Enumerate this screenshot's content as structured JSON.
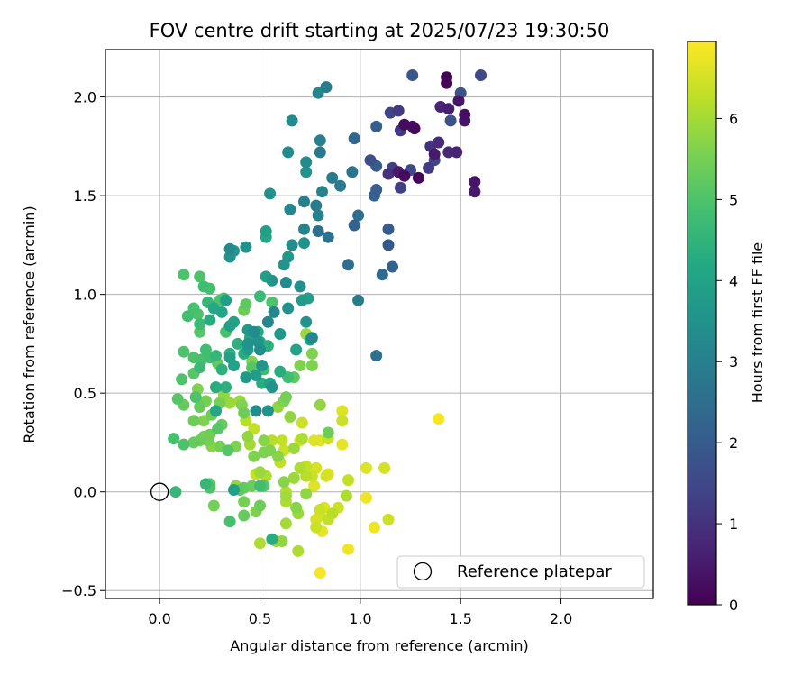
{
  "chart_data": {
    "type": "scatter",
    "title": "FOV centre drift starting at 2025/07/23 19:30:50",
    "xlabel": "Angular distance from reference (arcmin)",
    "ylabel": "Rotation from reference (arcmin)",
    "xlim": [
      -0.27,
      2.46
    ],
    "ylim": [
      -0.54,
      2.24
    ],
    "x_ticks": [
      "0.0",
      "0.5",
      "1.0",
      "1.5",
      "2.0"
    ],
    "y_ticks": [
      "−0.5",
      "0.0",
      "0.5",
      "1.0",
      "1.5",
      "2.0"
    ],
    "grid": true,
    "colorbar": {
      "label": "Hours from first FF file",
      "min": 0,
      "max": 6.95,
      "ticks": [
        "0",
        "1",
        "2",
        "3",
        "4",
        "5",
        "6"
      ],
      "colormap": "viridis"
    },
    "legend": {
      "position": "lower-right",
      "entries": [
        {
          "label": "Reference platepar",
          "marker": "open-circle",
          "x": 0.0,
          "y": 0.0
        }
      ]
    },
    "points": [
      [
        1.43,
        2.1,
        0.05
      ],
      [
        1.43,
        2.07,
        0.1
      ],
      [
        1.49,
        1.98,
        0.4
      ],
      [
        1.52,
        1.91,
        0.3
      ],
      [
        1.52,
        1.88,
        0.4
      ],
      [
        1.44,
        1.94,
        0.6
      ],
      [
        1.4,
        1.95,
        0.7
      ],
      [
        1.26,
        1.85,
        0.3
      ],
      [
        1.22,
        1.86,
        0.2
      ],
      [
        1.27,
        1.84,
        0.2
      ],
      [
        1.37,
        1.71,
        0.5
      ],
      [
        1.44,
        1.72,
        0.8
      ],
      [
        1.57,
        1.57,
        0.4
      ],
      [
        1.57,
        1.52,
        0.5
      ],
      [
        1.48,
        1.72,
        0.7
      ],
      [
        1.39,
        1.77,
        0.9
      ],
      [
        1.35,
        1.75,
        1.0
      ],
      [
        1.19,
        1.93,
        1.2
      ],
      [
        1.15,
        1.92,
        1.4
      ],
      [
        1.2,
        1.83,
        1.1
      ],
      [
        1.22,
        1.6,
        0.2
      ],
      [
        1.29,
        1.59,
        0.1
      ],
      [
        1.19,
        1.62,
        0.5
      ],
      [
        1.14,
        1.61,
        1.0
      ],
      [
        1.16,
        1.64,
        1.3
      ],
      [
        1.2,
        1.54,
        1.3
      ],
      [
        1.34,
        1.64,
        1.2
      ],
      [
        1.37,
        1.68,
        1.4
      ],
      [
        1.25,
        1.63,
        1.5
      ],
      [
        1.26,
        2.11,
        1.9
      ],
      [
        1.5,
        2.02,
        1.8
      ],
      [
        1.6,
        2.11,
        1.5
      ],
      [
        1.45,
        1.88,
        1.7
      ],
      [
        1.08,
        1.85,
        2.1
      ],
      [
        1.05,
        1.68,
        1.7
      ],
      [
        1.08,
        1.65,
        2.0
      ],
      [
        1.08,
        1.53,
        2.1
      ],
      [
        1.07,
        1.5,
        2.2
      ],
      [
        0.97,
        1.79,
        2.3
      ],
      [
        0.96,
        1.62,
        2.6
      ],
      [
        0.99,
        1.4,
        2.5
      ],
      [
        0.97,
        1.35,
        2.2
      ],
      [
        1.14,
        1.33,
        2.0
      ],
      [
        1.14,
        1.25,
        1.9
      ],
      [
        1.16,
        1.14,
        2.2
      ],
      [
        1.11,
        1.1,
        2.4
      ],
      [
        1.08,
        0.69,
        2.5
      ],
      [
        0.99,
        0.97,
        2.9
      ],
      [
        0.94,
        1.15,
        2.5
      ],
      [
        0.9,
        1.55,
        2.8
      ],
      [
        0.86,
        1.59,
        2.9
      ],
      [
        0.84,
        1.29,
        2.6
      ],
      [
        0.79,
        1.32,
        2.5
      ],
      [
        0.78,
        1.45,
        2.9
      ],
      [
        0.79,
        1.4,
        3.0
      ],
      [
        0.81,
        1.52,
        3.1
      ],
      [
        0.8,
        1.72,
        2.8
      ],
      [
        0.8,
        1.78,
        3.0
      ],
      [
        0.79,
        2.02,
        3.2
      ],
      [
        0.83,
        2.05,
        2.9
      ],
      [
        0.66,
        1.88,
        3.3
      ],
      [
        0.73,
        1.67,
        3.3
      ],
      [
        0.73,
        1.62,
        3.5
      ],
      [
        0.64,
        1.72,
        3.3
      ],
      [
        0.72,
        1.47,
        3.0
      ],
      [
        0.65,
        1.43,
        3.2
      ],
      [
        0.72,
        1.33,
        3.1
      ],
      [
        0.66,
        1.25,
        3.4
      ],
      [
        0.72,
        1.26,
        3.5
      ],
      [
        0.64,
        1.19,
        3.7
      ],
      [
        0.62,
        1.15,
        3.6
      ],
      [
        0.55,
        1.51,
        3.5
      ],
      [
        0.53,
        1.32,
        3.9
      ],
      [
        0.53,
        1.29,
        4.1
      ],
      [
        0.53,
        1.09,
        3.9
      ],
      [
        0.56,
        1.07,
        3.6
      ],
      [
        0.63,
        1.06,
        3.3
      ],
      [
        0.7,
        1.04,
        3.5
      ],
      [
        0.71,
        0.97,
        3.8
      ],
      [
        0.74,
        0.98,
        3.9
      ],
      [
        0.73,
        0.86,
        3.6
      ],
      [
        0.76,
        0.78,
        3.2
      ],
      [
        0.75,
        0.77,
        3.9
      ],
      [
        0.68,
        0.72,
        4.0
      ],
      [
        0.6,
        0.8,
        3.7
      ],
      [
        0.64,
        0.93,
        3.5
      ],
      [
        0.57,
        0.91,
        3.1
      ],
      [
        0.54,
        0.86,
        3.2
      ],
      [
        0.47,
        0.81,
        3.3
      ],
      [
        0.44,
        0.82,
        3.7
      ],
      [
        0.44,
        0.75,
        3.5
      ],
      [
        0.44,
        0.72,
        3.8
      ],
      [
        0.49,
        0.76,
        3.6
      ],
      [
        0.5,
        0.72,
        3.4
      ],
      [
        0.51,
        0.64,
        3.6
      ],
      [
        0.48,
        0.59,
        3.8
      ],
      [
        0.43,
        0.58,
        3.7
      ],
      [
        0.51,
        0.55,
        4.3
      ],
      [
        0.55,
        0.55,
        3.9
      ],
      [
        0.56,
        0.53,
        3.6
      ],
      [
        0.54,
        0.41,
        3.5
      ],
      [
        0.48,
        0.41,
        3.4
      ],
      [
        0.35,
        0.84,
        3.9
      ],
      [
        0.33,
        0.97,
        3.9
      ],
      [
        0.35,
        1.19,
        3.6
      ],
      [
        0.35,
        1.23,
        3.3
      ],
      [
        0.37,
        1.22,
        3.7
      ],
      [
        0.43,
        1.24,
        3.5
      ],
      [
        0.39,
        0.75,
        4.4
      ],
      [
        0.37,
        0.86,
        4.0
      ],
      [
        0.35,
        0.68,
        3.9
      ],
      [
        0.31,
        0.62,
        4.4
      ],
      [
        0.37,
        0.64,
        4.0
      ],
      [
        0.33,
        0.53,
        4.4
      ],
      [
        0.28,
        0.53,
        4.3
      ],
      [
        0.28,
        0.41,
        4.1
      ],
      [
        0.27,
        0.93,
        4.2
      ],
      [
        0.25,
        0.87,
        4.3
      ],
      [
        0.31,
        0.91,
        4.1
      ],
      [
        0.12,
        1.1,
        5.0
      ],
      [
        0.2,
        1.09,
        5.0
      ],
      [
        0.25,
        1.03,
        4.9
      ],
      [
        0.22,
        1.04,
        4.8
      ],
      [
        0.24,
        0.96,
        4.6
      ],
      [
        0.2,
        0.85,
        4.7
      ],
      [
        0.14,
        0.89,
        4.8
      ],
      [
        0.17,
        0.93,
        4.9
      ],
      [
        0.19,
        0.9,
        5.0
      ],
      [
        0.2,
        0.81,
        5.1
      ],
      [
        0.12,
        0.71,
        5.0
      ],
      [
        0.17,
        0.68,
        5.0
      ],
      [
        0.21,
        0.67,
        4.9
      ],
      [
        0.23,
        0.72,
        4.8
      ],
      [
        0.25,
        0.68,
        4.8
      ],
      [
        0.11,
        0.57,
        5.0
      ],
      [
        0.17,
        0.6,
        5.1
      ],
      [
        0.2,
        0.63,
        4.7
      ],
      [
        0.28,
        0.69,
        4.6
      ],
      [
        0.29,
        0.65,
        5.3
      ],
      [
        0.33,
        0.81,
        4.9
      ],
      [
        0.35,
        0.7,
        4.4
      ],
      [
        0.42,
        0.7,
        4.3
      ],
      [
        0.45,
        0.78,
        4.2
      ],
      [
        0.49,
        0.81,
        4.2
      ],
      [
        0.5,
        0.76,
        4.3
      ],
      [
        0.54,
        0.74,
        4.4
      ],
      [
        0.46,
        0.63,
        5.1
      ],
      [
        0.46,
        0.66,
        5.6
      ],
      [
        0.52,
        0.62,
        4.8
      ],
      [
        0.6,
        0.61,
        4.3
      ],
      [
        0.64,
        0.58,
        4.8
      ],
      [
        0.67,
        0.58,
        5.2
      ],
      [
        0.7,
        0.64,
        5.6
      ],
      [
        0.76,
        0.64,
        5.6
      ],
      [
        0.76,
        0.7,
        5.6
      ],
      [
        0.73,
        0.8,
        5.9
      ],
      [
        0.5,
        0.99,
        4.7
      ],
      [
        0.56,
        0.96,
        5.0
      ],
      [
        0.43,
        0.95,
        5.2
      ],
      [
        0.42,
        0.92,
        5.4
      ],
      [
        0.3,
        0.97,
        5.0
      ],
      [
        0.32,
        0.98,
        4.9
      ],
      [
        0.09,
        0.47,
        5.1
      ],
      [
        0.12,
        0.44,
        5.3
      ],
      [
        0.18,
        0.48,
        5.0
      ],
      [
        0.2,
        0.43,
        5.3
      ],
      [
        0.19,
        0.52,
        5.6
      ],
      [
        0.23,
        0.46,
        5.5
      ],
      [
        0.26,
        0.39,
        5.4
      ],
      [
        0.22,
        0.36,
        5.6
      ],
      [
        0.17,
        0.36,
        5.4
      ],
      [
        0.22,
        0.28,
        5.5
      ],
      [
        0.24,
        0.26,
        5.5
      ],
      [
        0.25,
        0.29,
        5.4
      ],
      [
        0.26,
        0.23,
        5.7
      ],
      [
        0.3,
        0.45,
        5.5
      ],
      [
        0.32,
        0.49,
        5.8
      ],
      [
        0.35,
        0.45,
        5.9
      ],
      [
        0.4,
        0.46,
        5.9
      ],
      [
        0.41,
        0.44,
        5.6
      ],
      [
        0.42,
        0.4,
        5.4
      ],
      [
        0.43,
        0.36,
        6.2
      ],
      [
        0.44,
        0.28,
        5.8
      ],
      [
        0.38,
        0.23,
        5.6
      ],
      [
        0.34,
        0.21,
        5.1
      ],
      [
        0.3,
        0.23,
        5.5
      ],
      [
        0.47,
        0.32,
        6.3
      ],
      [
        0.45,
        0.24,
        6.0
      ],
      [
        0.47,
        0.18,
        5.6
      ],
      [
        0.52,
        0.2,
        5.6
      ],
      [
        0.52,
        0.26,
        5.7
      ],
      [
        0.55,
        0.21,
        5.6
      ],
      [
        0.56,
        0.26,
        6.2
      ],
      [
        0.61,
        0.26,
        6.3
      ],
      [
        0.62,
        0.21,
        6.4
      ],
      [
        0.6,
        0.15,
        6.3
      ],
      [
        0.59,
        0.18,
        5.7
      ],
      [
        0.59,
        0.43,
        5.8
      ],
      [
        0.62,
        0.46,
        5.6
      ],
      [
        0.63,
        0.48,
        5.5
      ],
      [
        0.65,
        0.38,
        5.8
      ],
      [
        0.71,
        0.35,
        6.4
      ],
      [
        0.7,
        0.26,
        6.5
      ],
      [
        0.71,
        0.27,
        6.1
      ],
      [
        0.67,
        0.22,
        5.9
      ],
      [
        0.7,
        0.12,
        6.1
      ],
      [
        0.73,
        0.13,
        6.3
      ],
      [
        0.73,
        0.08,
        6.2
      ],
      [
        0.78,
        0.12,
        6.5
      ],
      [
        0.77,
        0.26,
        6.6
      ],
      [
        0.8,
        0.26,
        6.6
      ],
      [
        0.84,
        0.27,
        6.4
      ],
      [
        0.8,
        0.44,
        5.8
      ],
      [
        0.84,
        0.3,
        5.4
      ],
      [
        0.91,
        0.41,
        6.6
      ],
      [
        0.91,
        0.36,
        6.4
      ],
      [
        0.91,
        0.24,
        6.7
      ],
      [
        0.94,
        0.06,
        6.3
      ],
      [
        0.93,
        -0.02,
        6.1
      ],
      [
        0.89,
        -0.08,
        6.4
      ],
      [
        1.03,
        -0.03,
        6.8
      ],
      [
        1.03,
        0.12,
        6.6
      ],
      [
        1.12,
        0.12,
        6.5
      ],
      [
        1.14,
        -0.14,
        6.4
      ],
      [
        1.07,
        -0.18,
        6.8
      ],
      [
        0.94,
        -0.29,
        6.8
      ],
      [
        1.39,
        0.37,
        6.9
      ],
      [
        0.8,
        -0.41,
        6.9
      ],
      [
        0.81,
        -0.2,
        6.7
      ],
      [
        0.78,
        -0.18,
        6.4
      ],
      [
        0.78,
        -0.14,
        6.5
      ],
      [
        0.8,
        -0.12,
        6.5
      ],
      [
        0.8,
        -0.09,
        6.4
      ],
      [
        0.84,
        -0.14,
        6.3
      ],
      [
        0.86,
        -0.11,
        6.2
      ],
      [
        0.82,
        -0.08,
        6.6
      ],
      [
        0.83,
        0.08,
        6.5
      ],
      [
        0.84,
        0.09,
        6.6
      ],
      [
        0.76,
        0.08,
        6.4
      ],
      [
        0.77,
        0.03,
        6.6
      ],
      [
        0.73,
        -0.01,
        5.8
      ],
      [
        0.67,
        0.07,
        5.9
      ],
      [
        0.62,
        0.05,
        5.7
      ],
      [
        0.63,
        -0.02,
        6.0
      ],
      [
        0.63,
        -0.05,
        6.1
      ],
      [
        0.63,
        -0.16,
        6.0
      ],
      [
        0.68,
        -0.08,
        5.7
      ],
      [
        0.69,
        -0.11,
        5.9
      ],
      [
        0.69,
        -0.3,
        6.1
      ],
      [
        0.56,
        -0.24,
        4.3
      ],
      [
        0.58,
        -0.25,
        5.9
      ],
      [
        0.61,
        -0.25,
        5.8
      ],
      [
        0.5,
        -0.26,
        6.1
      ],
      [
        0.48,
        -0.1,
        5.6
      ],
      [
        0.5,
        -0.07,
        5.4
      ],
      [
        0.5,
        0.03,
        4.8
      ],
      [
        0.52,
        0.03,
        5.1
      ],
      [
        0.46,
        0.03,
        5.4
      ],
      [
        0.42,
        0.02,
        5.3
      ],
      [
        0.38,
        0.03,
        5.8
      ],
      [
        0.37,
        0.01,
        3.9
      ],
      [
        0.4,
        0.01,
        5.2
      ],
      [
        0.42,
        -0.05,
        5.5
      ],
      [
        0.42,
        -0.12,
        5.3
      ],
      [
        0.35,
        -0.15,
        4.9
      ],
      [
        0.27,
        -0.07,
        5.5
      ],
      [
        0.25,
        0.02,
        5.0
      ],
      [
        0.25,
        0.04,
        5.2
      ],
      [
        0.2,
        0.26,
        5.4
      ],
      [
        0.17,
        0.25,
        5.3
      ],
      [
        0.12,
        0.24,
        5.0
      ],
      [
        0.07,
        0.27,
        4.9
      ],
      [
        0.08,
        0.0,
        4.6
      ],
      [
        0.23,
        0.04,
        4.6
      ],
      [
        0.29,
        0.32,
        5.1
      ],
      [
        0.31,
        0.34,
        5.3
      ],
      [
        0.53,
        0.08,
        6.1
      ],
      [
        0.5,
        0.1,
        5.9
      ],
      [
        0.48,
        0.09,
        6.3
      ],
      [
        0.63,
        0.0,
        6.2
      ]
    ]
  }
}
